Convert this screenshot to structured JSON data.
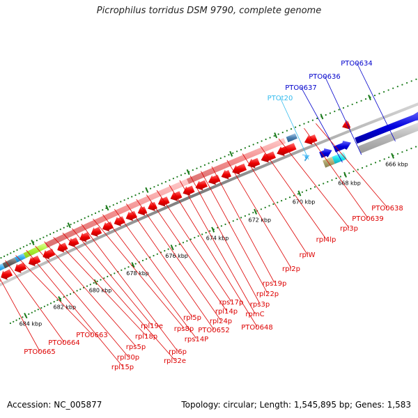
{
  "title": "Picrophilus torridus DSM 9790, complete genome",
  "footer": {
    "accession": "Accession: NC_005877",
    "summary": "Topology: circular; Length: 1,545,895 bp; Genes: 1,583"
  },
  "colors": {
    "forward_label": "#0000cc",
    "rna_label": "#33bbee",
    "reverse_label": "#dd0000",
    "backbone": "#808080",
    "tick": "#1a7a1a",
    "gene_red": "#ee1111",
    "gene_blue": "#1111dd",
    "gene_light_red": "#f29a9a",
    "gene_gray": "#bbbbbb"
  },
  "chart_data": {
    "type": "linear-genome-map",
    "ticks": [
      "666 kbp",
      "668 kbp",
      "670 kbp",
      "672 kbp",
      "674 kbp",
      "676 kbp",
      "678 kbp",
      "680 kbp",
      "682 kbp",
      "684 kbp"
    ],
    "forward_labels": [
      "PTO0634",
      "PTO0636",
      "PTO0637"
    ],
    "rna_labels": [
      "PTOt20"
    ],
    "reverse_labels": [
      "PTO0638",
      "PTO0639",
      "rpl3p",
      "rpl4lp",
      "rplW",
      "rpl2p",
      "rps19p",
      "rpl22p",
      "rps3p",
      "rpmC",
      "PTO0648",
      "rps17p",
      "rpl14p",
      "rpl24p",
      "PTO0652",
      "rpl5p",
      "rps14P",
      "rps8p",
      "rpl6p",
      "rpl19e",
      "rpl32e",
      "rpl18p",
      "rps5p",
      "rpl30p",
      "rpl15p",
      "PTO0663",
      "PTO0664",
      "PTO0665"
    ]
  }
}
